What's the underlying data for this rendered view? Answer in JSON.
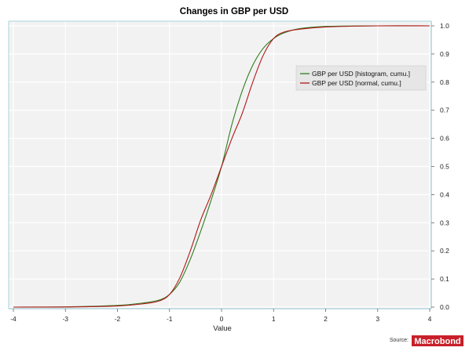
{
  "chart_data": {
    "type": "line",
    "title": "Changes in GBP per USD",
    "xlabel": "Value",
    "ylabel": "",
    "xlim": [
      -4,
      4
    ],
    "ylim": [
      0,
      1.0
    ],
    "x_ticks": [
      "-4",
      "-3",
      "-2",
      "-1",
      "0",
      "1",
      "2",
      "3",
      "4"
    ],
    "y_ticks": [
      "0.0",
      "0.1",
      "0.2",
      "0.3",
      "0.4",
      "0.5",
      "0.6",
      "0.7",
      "0.8",
      "0.9",
      "1.0"
    ],
    "grid": true,
    "legend_position": "top-right",
    "series": [
      {
        "name": "GBP per USD [histogram, cumu.]",
        "color": "#2e7d1e",
        "x": [
          -4,
          -3,
          -2,
          -1.5,
          -1.2,
          -1.0,
          -0.8,
          -0.6,
          -0.4,
          -0.2,
          0,
          0.2,
          0.4,
          0.6,
          0.8,
          1.0,
          1.2,
          1.5,
          2,
          3,
          4
        ],
        "y": [
          0.0,
          0.001,
          0.006,
          0.015,
          0.025,
          0.045,
          0.09,
          0.17,
          0.27,
          0.38,
          0.5,
          0.65,
          0.77,
          0.86,
          0.92,
          0.955,
          0.975,
          0.99,
          0.998,
          1.0,
          1.0
        ]
      },
      {
        "name": "GBP per USD [normal, cumu.]",
        "color": "#b01818",
        "x": [
          -4,
          -3,
          -2,
          -1.5,
          -1.2,
          -1.0,
          -0.8,
          -0.6,
          -0.4,
          -0.2,
          0,
          0.2,
          0.4,
          0.6,
          0.8,
          1.0,
          1.2,
          1.5,
          2,
          3,
          4
        ],
        "y": [
          0.0,
          0.0005,
          0.004,
          0.012,
          0.022,
          0.045,
          0.105,
          0.2,
          0.31,
          0.4,
          0.5,
          0.6,
          0.69,
          0.8,
          0.895,
          0.955,
          0.978,
          0.988,
          0.996,
          1.0,
          1.0
        ]
      }
    ]
  },
  "footer": {
    "source_label": "Source:",
    "logo_text": "Macrobond"
  }
}
